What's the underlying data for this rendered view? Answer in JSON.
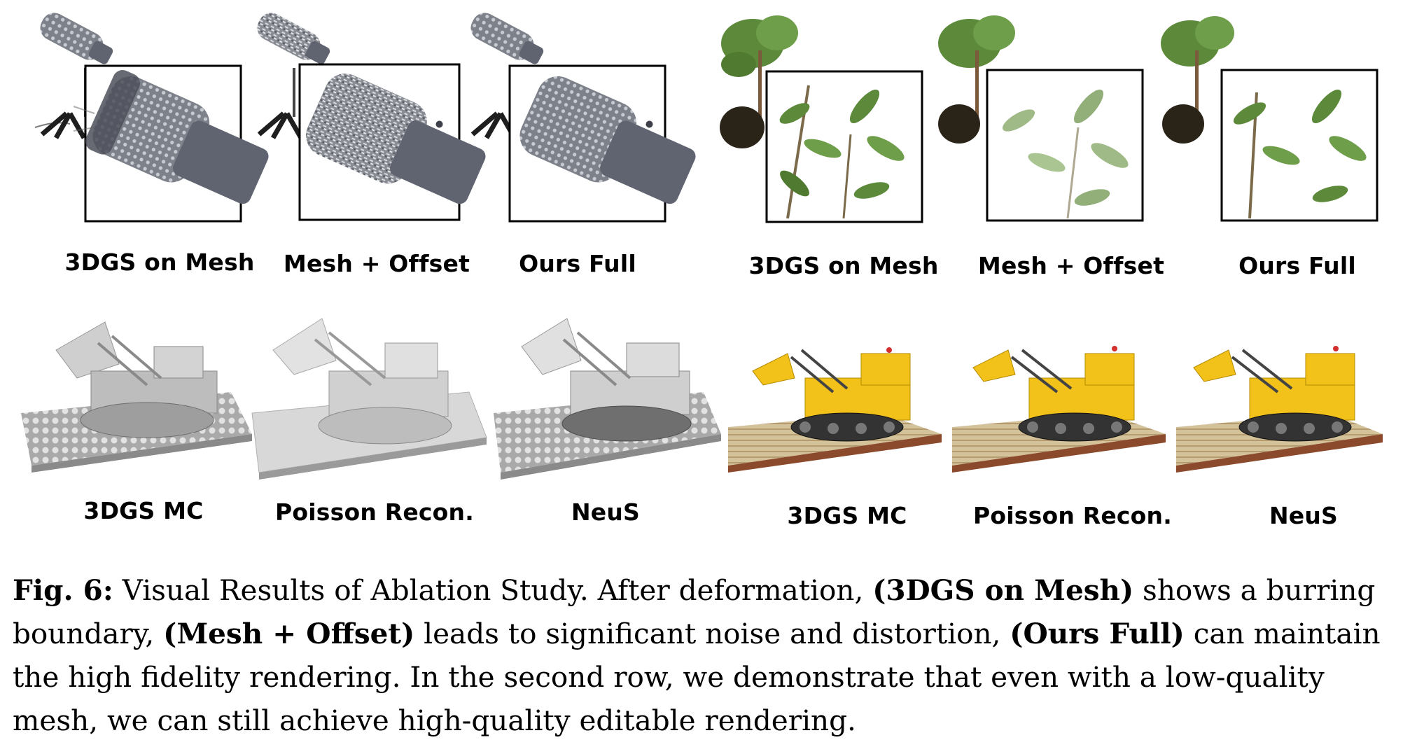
{
  "figure": {
    "row1_labels": [
      "3DGS on Mesh",
      "Mesh + Offset",
      "Ours Full",
      "3DGS on Mesh",
      "Mesh + Offset",
      "Ours Full"
    ],
    "row2_labels": [
      "3DGS MC",
      "Poisson Recon.",
      "NeuS",
      "3DGS MC",
      "Poisson Recon.",
      "NeuS"
    ]
  },
  "caption": {
    "fig_label": "Fig. 6:",
    "text_1": " Visual Results of Ablation Study. After deformation, ",
    "bold_1": "(3DGS on Mesh)",
    "text_2": " shows a burring boundary, ",
    "bold_2": "(Mesh + Offset)",
    "text_3": " leads to significant noise and distortion, ",
    "bold_3": "(Ours Full)",
    "text_4": " can maintain the high fidelity rendering. In the second row, we demonstrate that even with a low-quality mesh, we can still achieve high-quality editable rendering."
  },
  "colors": {
    "mic_metal": "#5f6470",
    "plant_leaf": "#5c8a3a",
    "lego_yellow": "#f2c21b",
    "mesh_gray": "#c9c9c9"
  }
}
